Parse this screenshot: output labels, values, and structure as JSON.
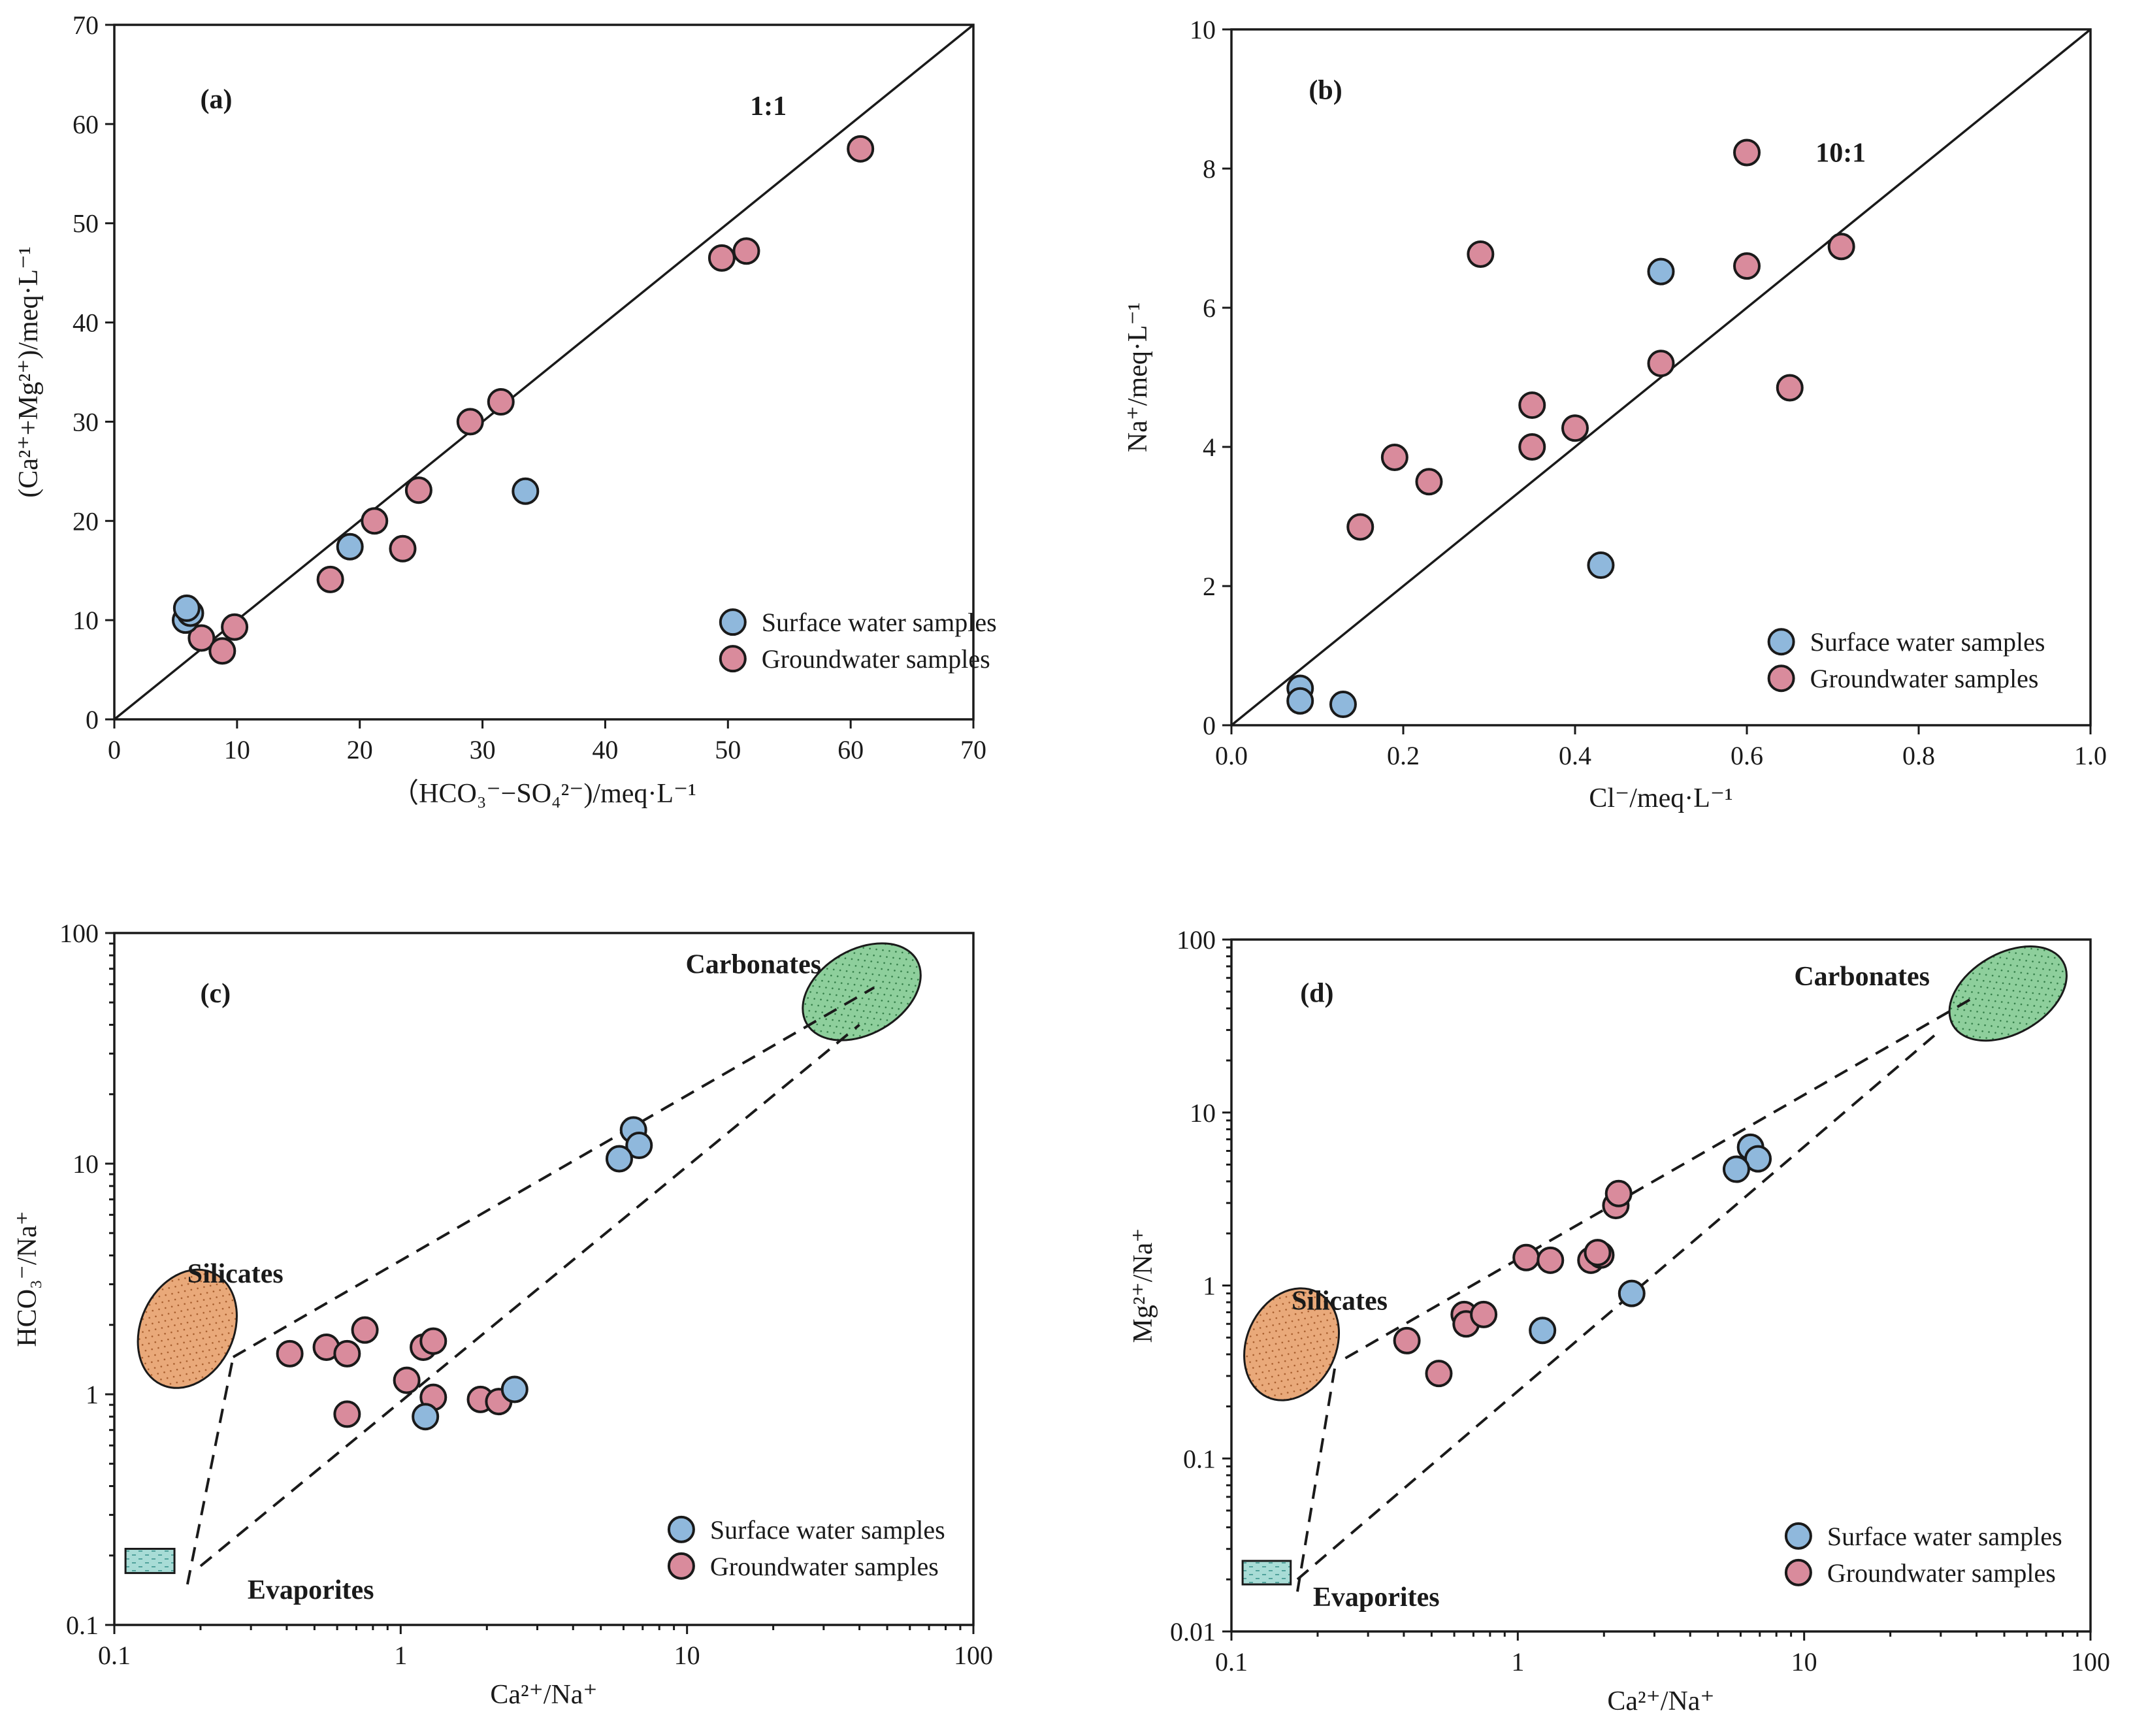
{
  "colors": {
    "surface": "#8fb8dc",
    "ground": "#d98b9c",
    "carbonates": "#8ecf9c",
    "silicates": "#e9a97a",
    "evaporites": "#a8dcd6"
  },
  "chart_data": [
    {
      "id": "a",
      "type": "scatter",
      "panel_label": "(a)",
      "title": "",
      "xlabel": "（HCO₃⁻−SO₄²⁻)/meq·L⁻¹",
      "ylabel": "(Ca²⁺+Mg²⁺)/meq·L⁻¹",
      "x_scale": "linear",
      "y_scale": "linear",
      "xlim": [
        0,
        70
      ],
      "ylim": [
        0,
        70
      ],
      "xticks": [
        0,
        10,
        20,
        30,
        40,
        50,
        60,
        70
      ],
      "yticks": [
        0,
        10,
        20,
        30,
        40,
        50,
        60,
        70
      ],
      "xtick_labels": [
        "0",
        "10",
        "20",
        "30",
        "40",
        "50",
        "60",
        "70"
      ],
      "ytick_labels": [
        "0",
        "10",
        "20",
        "30",
        "40",
        "50",
        "60",
        "70"
      ],
      "reference_line": {
        "label": "1:1",
        "slope": 1
      },
      "legend": {
        "position": "bottom-right",
        "entries": [
          "Surface water samples",
          "Groundwater samples"
        ]
      },
      "series": [
        {
          "name": "Surface water samples",
          "x": [
            5.8,
            6.2,
            5.9,
            19.2,
            33.5
          ],
          "y": [
            10.0,
            10.7,
            11.2,
            17.4,
            23.0
          ]
        },
        {
          "name": "Groundwater samples",
          "x": [
            7.1,
            8.8,
            9.8,
            17.6,
            21.2,
            23.5,
            24.8,
            29.0,
            31.5,
            49.5,
            51.5,
            60.8
          ],
          "y": [
            8.2,
            6.9,
            9.3,
            14.1,
            20.0,
            17.2,
            23.1,
            30.0,
            32.0,
            46.5,
            47.2,
            57.5
          ]
        }
      ]
    },
    {
      "id": "b",
      "type": "scatter",
      "panel_label": "(b)",
      "title": "",
      "xlabel": "Cl⁻/meq·L⁻¹",
      "ylabel": "Na⁺/meq·L⁻¹",
      "x_scale": "linear",
      "y_scale": "linear",
      "xlim": [
        0.0,
        1.0
      ],
      "ylim": [
        0,
        10
      ],
      "xticks": [
        0.0,
        0.2,
        0.4,
        0.6,
        0.8,
        1.0
      ],
      "yticks": [
        0,
        2,
        4,
        6,
        8,
        10
      ],
      "xtick_labels": [
        "0.0",
        "0.2",
        "0.4",
        "0.6",
        "0.8",
        "1.0"
      ],
      "ytick_labels": [
        "0",
        "2",
        "4",
        "6",
        "8",
        "10"
      ],
      "reference_line": {
        "label": "10:1",
        "slope": 10
      },
      "legend": {
        "position": "bottom-right",
        "entries": [
          "Surface water samples",
          "Groundwater samples"
        ]
      },
      "series": [
        {
          "name": "Surface water samples",
          "x": [
            0.08,
            0.08,
            0.13,
            0.43,
            0.5
          ],
          "y": [
            0.53,
            0.35,
            0.3,
            2.3,
            6.52
          ]
        },
        {
          "name": "Groundwater samples",
          "x": [
            0.15,
            0.19,
            0.23,
            0.29,
            0.35,
            0.35,
            0.4,
            0.5,
            0.6,
            0.6,
            0.65,
            0.71
          ],
          "y": [
            2.85,
            3.85,
            3.5,
            6.77,
            4.6,
            4.0,
            4.27,
            5.2,
            8.23,
            6.6,
            4.85,
            6.88
          ]
        }
      ]
    },
    {
      "id": "c",
      "type": "scatter",
      "panel_label": "(c)",
      "title": "",
      "xlabel": "Ca²⁺/Na⁺",
      "ylabel": "HCO₃⁻/Na⁺",
      "x_scale": "log",
      "y_scale": "log",
      "xlim": [
        0.1,
        100
      ],
      "ylim": [
        0.1,
        100
      ],
      "xticks": [
        0.1,
        1,
        10,
        100
      ],
      "yticks": [
        0.1,
        1,
        10,
        100
      ],
      "xtick_labels": [
        "0.1",
        "1",
        "10",
        "100"
      ],
      "ytick_labels": [
        "0.1",
        "1",
        "10",
        "100"
      ],
      "regions": [
        {
          "name": "Carbonates",
          "shape": "ellipse",
          "center": [
            50,
            50
          ]
        },
        {
          "name": "Silicates",
          "shape": "ellipse",
          "center": [
            0.31,
            1.45
          ]
        },
        {
          "name": "Evaporites",
          "shape": "rectangle",
          "center": [
            0.2,
            0.17
          ]
        }
      ],
      "mixing_lines": [
        [
          [
            0.26,
            1.45
          ],
          [
            45,
            58
          ]
        ],
        [
          [
            0.2,
            0.18
          ],
          [
            40,
            40
          ]
        ],
        [
          [
            0.18,
            0.15
          ],
          [
            0.26,
            1.45
          ]
        ]
      ],
      "legend": {
        "position": "bottom-right",
        "entries": [
          "Surface water samples",
          "Groundwater samples"
        ]
      },
      "series": [
        {
          "name": "Surface water samples",
          "x": [
            6.5,
            6.8,
            5.8,
            2.5,
            1.22
          ],
          "y": [
            14.0,
            12.0,
            10.5,
            1.05,
            0.8
          ]
        },
        {
          "name": "Groundwater samples",
          "x": [
            0.41,
            0.55,
            0.65,
            0.75,
            1.05,
            1.2,
            1.3,
            0.65,
            1.3,
            1.9,
            2.2
          ],
          "y": [
            1.5,
            1.6,
            1.5,
            1.9,
            1.15,
            1.6,
            1.7,
            0.82,
            0.97,
            0.95,
            0.93
          ]
        }
      ]
    },
    {
      "id": "d",
      "type": "scatter",
      "panel_label": "(d)",
      "title": "",
      "xlabel": "Ca²⁺/Na⁺",
      "ylabel": "Mg²⁺/Na⁺",
      "x_scale": "log",
      "y_scale": "log",
      "xlim": [
        0.1,
        100
      ],
      "ylim": [
        0.01,
        100
      ],
      "xticks": [
        0.1,
        1,
        10,
        100
      ],
      "yticks": [
        0.01,
        0.1,
        1,
        10,
        100
      ],
      "xtick_labels": [
        "0.1",
        "1",
        "10",
        "100"
      ],
      "ytick_labels": [
        "0.01",
        "0.1",
        "1",
        "10",
        "100"
      ],
      "regions": [
        {
          "name": "Carbonates",
          "shape": "ellipse",
          "center": [
            45,
            40
          ]
        },
        {
          "name": "Silicates",
          "shape": "ellipse",
          "center": [
            0.27,
            0.35
          ]
        },
        {
          "name": "Evaporites",
          "shape": "rectangle",
          "center": [
            0.18,
            0.016
          ]
        }
      ],
      "mixing_lines": [
        [
          [
            0.25,
            0.38
          ],
          [
            38,
            45
          ]
        ],
        [
          [
            0.17,
            0.02
          ],
          [
            30,
            30
          ]
        ],
        [
          [
            0.17,
            0.017
          ],
          [
            0.23,
            0.34
          ]
        ]
      ],
      "legend": {
        "position": "bottom-right",
        "entries": [
          "Surface water samples",
          "Groundwater samples"
        ]
      },
      "series": [
        {
          "name": "Surface water samples",
          "x": [
            6.5,
            6.9,
            5.8,
            2.5,
            1.22
          ],
          "y": [
            6.3,
            5.4,
            4.7,
            0.9,
            0.55
          ]
        },
        {
          "name": "Groundwater samples",
          "x": [
            0.41,
            0.53,
            0.65,
            0.66,
            0.76,
            1.07,
            1.3,
            1.8,
            1.95,
            1.9,
            2.2,
            2.25
          ],
          "y": [
            0.48,
            0.31,
            0.68,
            0.6,
            0.68,
            1.45,
            1.4,
            1.4,
            1.5,
            1.55,
            2.9,
            3.4
          ]
        }
      ]
    }
  ]
}
